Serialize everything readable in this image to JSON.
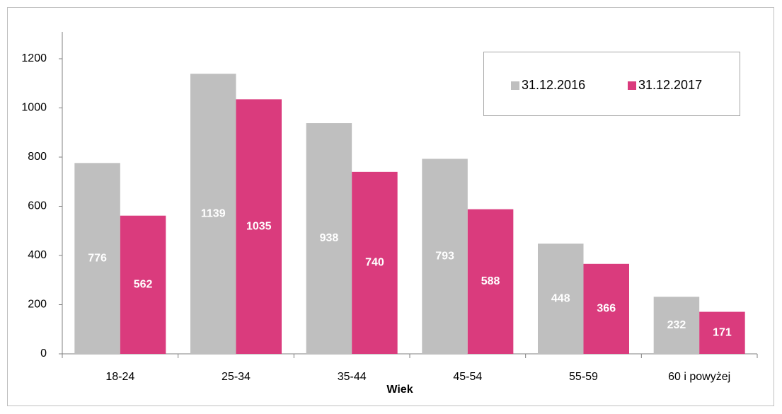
{
  "chart_data": {
    "type": "bar",
    "categories": [
      "18-24",
      "25-34",
      "35-44",
      "45-54",
      "55-59",
      "60 i powyżej"
    ],
    "series": [
      {
        "name": "31.12.2016",
        "color": "#bfbfbf",
        "values": [
          776,
          1139,
          938,
          793,
          448,
          232
        ]
      },
      {
        "name": "31.12.2017",
        "color": "#da3b7d",
        "values": [
          562,
          1035,
          740,
          588,
          366,
          171
        ]
      }
    ],
    "xlabel": "Wiek",
    "ylim": [
      0,
      1200
    ],
    "yticks": [
      0,
      200,
      400,
      600,
      800,
      1000,
      1200
    ],
    "legend": "top-right",
    "grid": false
  }
}
